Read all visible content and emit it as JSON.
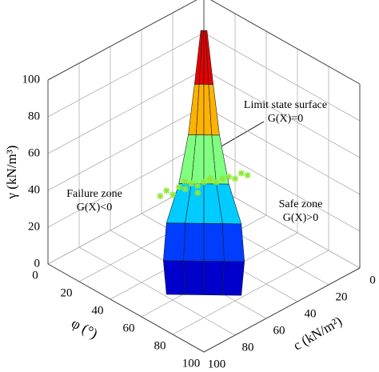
{
  "chart_data": {
    "type": "surface3d",
    "xlabel": "φ (°)",
    "ylabel": "c (kN/m²)",
    "zlabel": "γ (kN/m³)",
    "xlim": [
      0,
      100
    ],
    "xticks": [
      0,
      20,
      40,
      60,
      80,
      100
    ],
    "ylim": [
      0,
      100
    ],
    "yticks": [
      0,
      20,
      40,
      60,
      80,
      100
    ],
    "zlim": [
      0,
      100
    ],
    "zticks": [
      0,
      20,
      40,
      60,
      80,
      100
    ],
    "grid": true,
    "colormap": "jet",
    "surface": {
      "x": [
        [
          19,
          19.5,
          20,
          20.5,
          21
        ],
        [
          27,
          28.5,
          30,
          31.5,
          33
        ],
        [
          33,
          35.5,
          38,
          40.5,
          43
        ],
        [
          37,
          41,
          45,
          49,
          53
        ],
        [
          40,
          46,
          52,
          58,
          64
        ],
        [
          47,
          53.5,
          60,
          66.5,
          73
        ],
        [
          58,
          64,
          70,
          76,
          82
        ]
      ],
      "y": [
        [
          21,
          20.5,
          20,
          19.5,
          19
        ],
        [
          33,
          31.5,
          30,
          28.5,
          27
        ],
        [
          43,
          40.5,
          38,
          35.5,
          33
        ],
        [
          53,
          49,
          45,
          41,
          37
        ],
        [
          64,
          58,
          52,
          46,
          40
        ],
        [
          73,
          66.5,
          60,
          53.5,
          47
        ],
        [
          82,
          76,
          70,
          64,
          58
        ]
      ],
      "z": [
        [
          100,
          100,
          100,
          100,
          100
        ],
        [
          80,
          80,
          80,
          80,
          80
        ],
        [
          60,
          60,
          60,
          60,
          60
        ],
        [
          40,
          40,
          40,
          40,
          40
        ],
        [
          25,
          25,
          25,
          25,
          25
        ],
        [
          12,
          12,
          12,
          12,
          12
        ],
        [
          3,
          3,
          3,
          3,
          3
        ]
      ]
    },
    "scatter": {
      "color": "#8fe83a",
      "x": [
        31,
        33,
        35,
        37,
        39,
        41,
        43,
        45,
        47,
        49,
        51,
        53,
        55,
        57,
        59,
        44,
        48,
        40
      ],
      "y": [
        59,
        57,
        55,
        53,
        51,
        49,
        47,
        45,
        43,
        41,
        39,
        37,
        35,
        33,
        31,
        48,
        44,
        52
      ],
      "z": [
        33,
        36,
        34,
        38,
        37,
        40,
        39,
        41,
        42,
        41,
        43,
        44,
        43,
        46,
        45,
        36,
        44,
        42
      ]
    },
    "annotations": [
      {
        "lines": [
          "Limit state surface",
          "G(X)=0"
        ]
      },
      {
        "lines": [
          "Failure zone",
          "G(X)<0"
        ]
      },
      {
        "lines": [
          "Safe zone",
          "G(X)>0"
        ]
      }
    ]
  }
}
